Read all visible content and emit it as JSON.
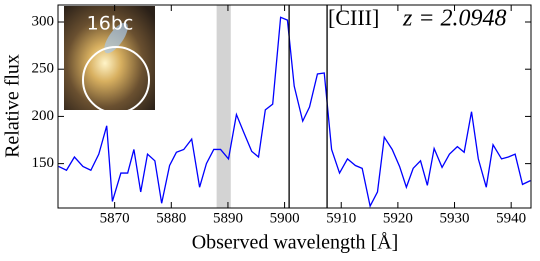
{
  "chart_data": {
    "type": "line",
    "xlabel": "Observed wavelength [Å]",
    "ylabel": "Relative flux",
    "annotations": [
      "[CIII]",
      "z = 2.0948"
    ],
    "inset_label": "16bc",
    "color": "#0000ff",
    "x": [
      5860.1,
      5861.5,
      5862.9,
      5864.4,
      5865.8,
      5867.2,
      5868.6,
      5869.6,
      5871.1,
      5872.3,
      5873.4,
      5874.6,
      5875.8,
      5877.1,
      5878.3,
      5879.7,
      5880.9,
      5882.2,
      5883.6,
      5885.0,
      5886.2,
      5887.5,
      5888.7,
      5890.1,
      5891.5,
      5892.8,
      5894.2,
      5895.4,
      5896.6,
      5897.9,
      5899.3,
      5900.5,
      5901.7,
      5903.2,
      5904.4,
      5905.8,
      5907.0,
      5908.3,
      5909.7,
      5911.1,
      5912.5,
      5913.7,
      5915.1,
      5916.4,
      5917.6,
      5919.0,
      5920.3,
      5921.5,
      5922.7,
      5924.0,
      5925.2,
      5926.4,
      5927.8,
      5929.1,
      5930.5,
      5931.7,
      5933.0,
      5934.2,
      5935.6,
      5936.8,
      5938.3,
      5939.5,
      5940.7,
      5942.0,
      5943.4
    ],
    "values": [
      147,
      143,
      157,
      147,
      143,
      160,
      190,
      110,
      140,
      140,
      165,
      120,
      160,
      153,
      108,
      148,
      162,
      165,
      176,
      125,
      150,
      165,
      165,
      155,
      202,
      183,
      163,
      157,
      207,
      213,
      305,
      302,
      232,
      195,
      210,
      245,
      246,
      165,
      140,
      155,
      148,
      145,
      105,
      120,
      178,
      165,
      147,
      125,
      145,
      153,
      127,
      166,
      146,
      160,
      168,
      162,
      205,
      155,
      125,
      170,
      155,
      157,
      160,
      128,
      132
    ],
    "vlines": [
      5900.8,
      5907.5
    ],
    "shade": [
      5888,
      5890.5
    ],
    "xlim": [
      5860,
      5943.5
    ],
    "ylim": [
      103,
      318
    ],
    "xticks": [
      5870,
      5880,
      5890,
      5900,
      5910,
      5920,
      5930,
      5940
    ],
    "yticks": [
      150,
      200,
      250,
      300
    ]
  }
}
